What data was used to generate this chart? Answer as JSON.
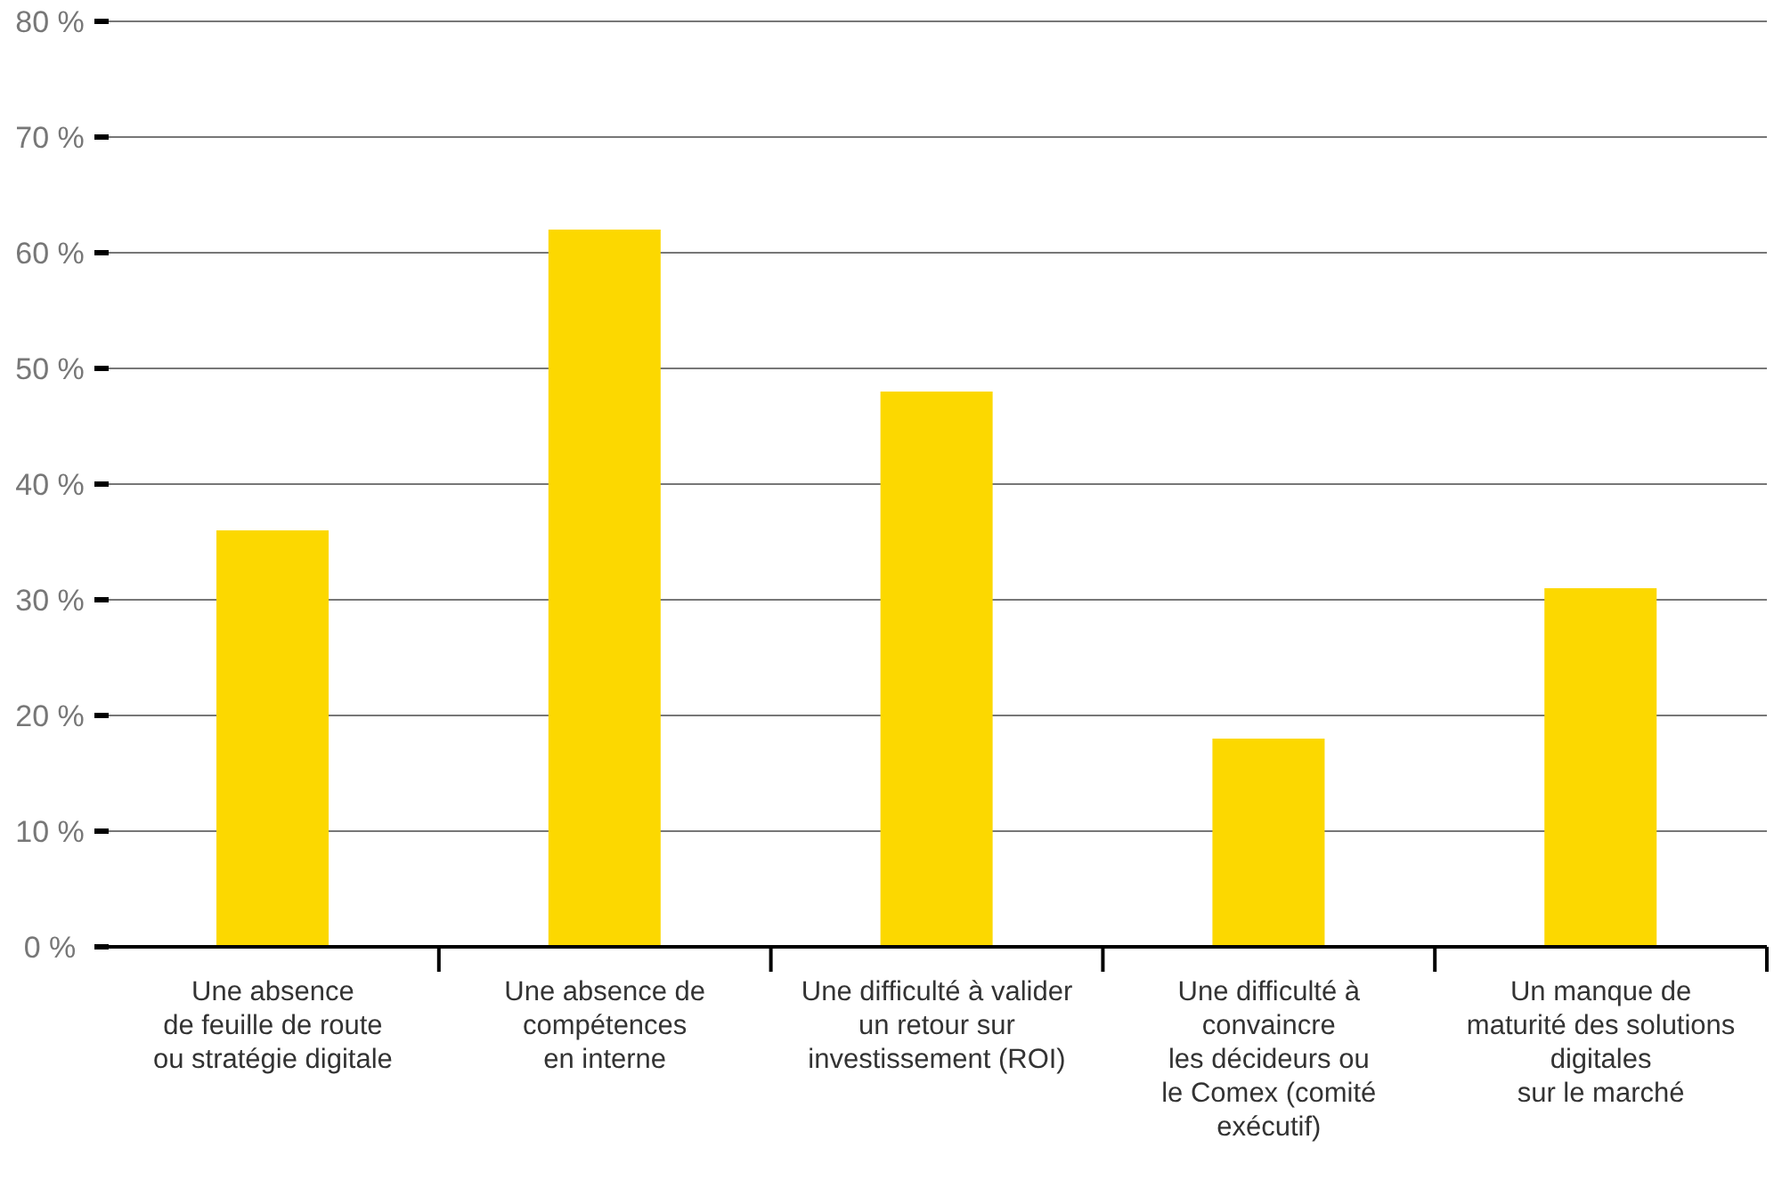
{
  "chart_data": {
    "type": "bar",
    "categories": [
      "Une absence\nde feuille de route\nou stratégie digitale",
      "Une absence de\ncompétences\nen interne",
      "Une difficulté à valider\nun retour sur\ninvestissement (ROI)",
      "Une difficulté à\nconvaincre\nles décideurs ou\nle Comex (comité\nexécutif)",
      "Un manque de\nmaturité des solutions\ndigitales\nsur le marché"
    ],
    "values": [
      36,
      62,
      48,
      18,
      31
    ],
    "color": "#fcd800",
    "ylim": [
      0,
      80
    ],
    "yticks": [
      {
        "value": 0,
        "label": "0 %"
      },
      {
        "value": 10,
        "label": "10 %"
      },
      {
        "value": 20,
        "label": "20 %"
      },
      {
        "value": 30,
        "label": "30 %"
      },
      {
        "value": 40,
        "label": "40 %"
      },
      {
        "value": 50,
        "label": "50 %"
      },
      {
        "value": 60,
        "label": "60 %"
      },
      {
        "value": 70,
        "label": "70 %"
      },
      {
        "value": 80,
        "label": "80 %"
      }
    ],
    "grid": "y"
  }
}
